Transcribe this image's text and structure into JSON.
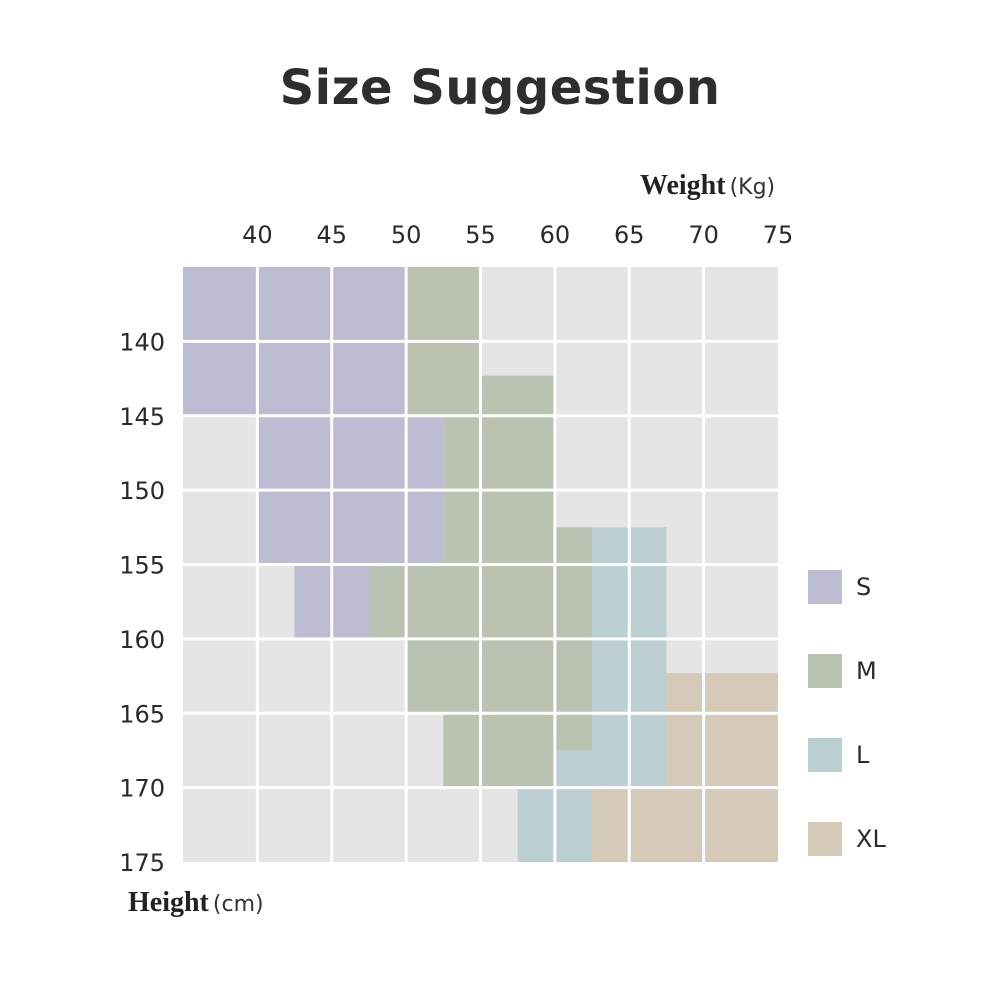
{
  "chart_data": {
    "type": "heatmap",
    "title": "Size Suggestion",
    "x_axis": {
      "label": "Weight",
      "unit": "(Kg)",
      "ticks": [
        40,
        45,
        50,
        55,
        60,
        65,
        70,
        75
      ],
      "range": [
        35,
        75
      ]
    },
    "y_axis": {
      "label": "Height",
      "unit": "(cm)",
      "ticks": [
        140,
        145,
        150,
        155,
        160,
        165,
        170,
        175
      ],
      "range": [
        135,
        175
      ]
    },
    "background_color": "#e5e5e5",
    "grid": true,
    "legend_position": "right",
    "legend": [
      {
        "label": "S",
        "color": "#bcbcd3"
      },
      {
        "label": "M",
        "color": "#bac2b1"
      },
      {
        "label": "L",
        "color": "#bcd0d3"
      },
      {
        "label": "XL",
        "color": "#d5cab8"
      }
    ],
    "regions": [
      {
        "size": "S",
        "weight": [
          35,
          50
        ],
        "height": [
          135,
          145
        ]
      },
      {
        "size": "M",
        "weight": [
          50,
          55
        ],
        "height": [
          135,
          145
        ]
      },
      {
        "size": "M",
        "weight": [
          55,
          60
        ],
        "height": [
          142.3,
          145
        ]
      },
      {
        "size": "S",
        "weight": [
          40,
          52.5
        ],
        "height": [
          145,
          155
        ]
      },
      {
        "size": "M",
        "weight": [
          52.5,
          60
        ],
        "height": [
          145,
          155
        ]
      },
      {
        "size": "M",
        "weight": [
          60,
          62.5
        ],
        "height": [
          152.5,
          155
        ]
      },
      {
        "size": "L",
        "weight": [
          62.5,
          67.5
        ],
        "height": [
          152.5,
          155
        ]
      },
      {
        "size": "S",
        "weight": [
          42.5,
          47.5
        ],
        "height": [
          155,
          160
        ]
      },
      {
        "size": "M",
        "weight": [
          47.5,
          62.5
        ],
        "height": [
          155,
          160
        ]
      },
      {
        "size": "L",
        "weight": [
          62.5,
          67.5
        ],
        "height": [
          155,
          160
        ]
      },
      {
        "size": "M",
        "weight": [
          50,
          62.5
        ],
        "height": [
          160,
          165
        ]
      },
      {
        "size": "L",
        "weight": [
          62.5,
          67.5
        ],
        "height": [
          160,
          165
        ]
      },
      {
        "size": "XL",
        "weight": [
          67.5,
          75
        ],
        "height": [
          162.3,
          165
        ]
      },
      {
        "size": "M",
        "weight": [
          52.5,
          60
        ],
        "height": [
          165,
          170
        ]
      },
      {
        "size": "M",
        "weight": [
          60,
          62.5
        ],
        "height": [
          165,
          167.5
        ]
      },
      {
        "size": "L",
        "weight": [
          60,
          62.5
        ],
        "height": [
          167.5,
          170
        ]
      },
      {
        "size": "L",
        "weight": [
          62.5,
          67.5
        ],
        "height": [
          165,
          170
        ]
      },
      {
        "size": "XL",
        "weight": [
          67.5,
          75
        ],
        "height": [
          165,
          170
        ]
      },
      {
        "size": "L",
        "weight": [
          57.5,
          62.5
        ],
        "height": [
          170,
          175
        ]
      },
      {
        "size": "XL",
        "weight": [
          62.5,
          75
        ],
        "height": [
          170,
          175
        ]
      }
    ]
  }
}
